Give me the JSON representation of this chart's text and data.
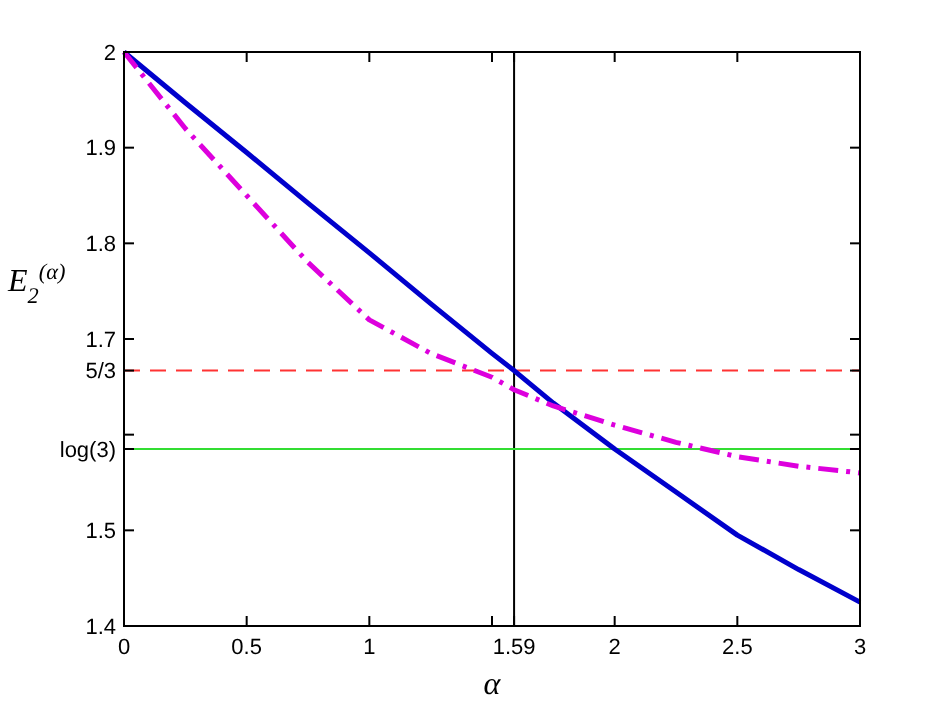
{
  "chart_data": {
    "type": "line",
    "xlabel": "α",
    "ylabel": "E$_{2}$$^{(α)}$",
    "x": [
      0,
      0.25,
      0.5,
      0.75,
      1,
      1.25,
      1.5,
      1.59,
      1.75,
      2,
      2.25,
      2.5,
      2.75,
      3
    ],
    "series": [
      {
        "color": "#0000cc",
        "line_style": "solid",
        "values": [
          2,
          1.947,
          1.895,
          1.842,
          1.79,
          1.737,
          1.685,
          1.667,
          1.633,
          1.585,
          1.54,
          1.495,
          1.459,
          1.425
        ]
      },
      {
        "color": "#dd00dd",
        "line_style": "dashdot",
        "values": [
          2,
          1.92,
          1.85,
          1.78,
          1.72,
          1.685,
          1.66,
          1.647,
          1.63,
          1.61,
          1.592,
          1.577,
          1.567,
          1.56
        ]
      }
    ],
    "xlim": [
      0,
      3
    ],
    "ylim": [
      1.4,
      2
    ],
    "xticks": [
      0,
      0.5,
      1,
      {
        "value": 1.5,
        "label": null
      },
      {
        "value": 1.59,
        "label": "1.59"
      },
      2,
      2.5,
      3
    ],
    "yticks": [
      1.4,
      1.5,
      {
        "value": 1.585,
        "label": "log(3)"
      },
      {
        "value": 1.6,
        "label": null
      },
      {
        "value": 1.667,
        "label": "5/3"
      },
      1.7,
      1.8,
      1.9,
      2
    ],
    "ref_lines": [
      {
        "axis": "x",
        "value": 1.59,
        "color": "#000000",
        "line_style": "solid"
      },
      {
        "axis": "y",
        "value": 1.667,
        "color": "#ff3333",
        "line_style": "dashed"
      },
      {
        "axis": "y",
        "value": 1.585,
        "color": "#33dd33",
        "line_style": "solid"
      }
    ],
    "grid": false
  }
}
